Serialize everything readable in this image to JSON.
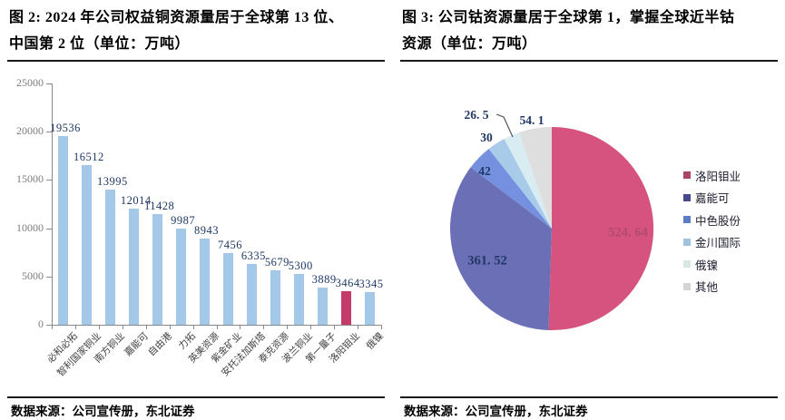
{
  "figure2": {
    "caption_line1": "图 2: 2024 年公司权益铜资源量居于全球第 13 位、",
    "caption_line2": "中国第 2 位（单位：万吨）",
    "source": "数据来源：公司宣传册，东北证券"
  },
  "figure3": {
    "caption_line1": "图 3: 公司钴资源量居于全球第 1，掌握全球近半钴",
    "caption_line2": "资源（单位：万吨）",
    "source": "数据来源：公司宣传册，东北证券"
  },
  "chart_data": [
    {
      "type": "bar",
      "title": "2024 年公司权益铜资源量居于全球第 13 位、中国第 2 位",
      "unit": "万吨",
      "categories": [
        "必和必拓",
        "智利国家铜业",
        "南方铜业",
        "嘉能可",
        "自由港",
        "力拓",
        "英美资源",
        "紫金矿业",
        "安托法加斯塔",
        "泰克资源",
        "波兰铜业",
        "第一量子",
        "洛阳钼业",
        "俄镍"
      ],
      "values": [
        19536,
        16512,
        13995,
        12014,
        11428,
        9987,
        8943,
        7456,
        6335,
        5679,
        5300,
        3889,
        3464,
        3345
      ],
      "highlight_index": 12,
      "bar_color": "#A3C8E8",
      "highlight_color": "#C43A6B",
      "value_label_color": "#1F3864",
      "ylim": [
        0,
        25000
      ],
      "yticks": [
        0,
        5000,
        10000,
        15000,
        20000,
        25000
      ],
      "grid": false
    },
    {
      "type": "pie",
      "title": "公司钴资源量居于全球第 1，掌握全球近半钴资源",
      "unit": "万吨",
      "labels": [
        "洛阳钼业",
        "嘉能可",
        "中色股份",
        "金川国际",
        "俄镍",
        "其他"
      ],
      "values": [
        524.64,
        361.52,
        42,
        30,
        26.5,
        54.1
      ],
      "value_labels": [
        "524. 64",
        "361. 52",
        "42",
        "30",
        "26. 5",
        "54. 1"
      ],
      "slice_colors": [
        "#D5537E",
        "#6B6FB5",
        "#7490DE",
        "#A9CBEA",
        "#D8ECF2",
        "#DEDEDE"
      ],
      "legend_colors": [
        "#AA4568",
        "#47498E",
        "#5C7DC6",
        "#9CC3DF",
        "#D7E7E2",
        "#D4D4D4"
      ],
      "label_colors": [
        "#B34A70",
        "#1F3864",
        "#1F3864",
        "#1F3864",
        "#1F3864",
        "#1F3864"
      ],
      "start_angle": "12-oclock",
      "direction": "clockwise",
      "legend_position": "right"
    }
  ]
}
